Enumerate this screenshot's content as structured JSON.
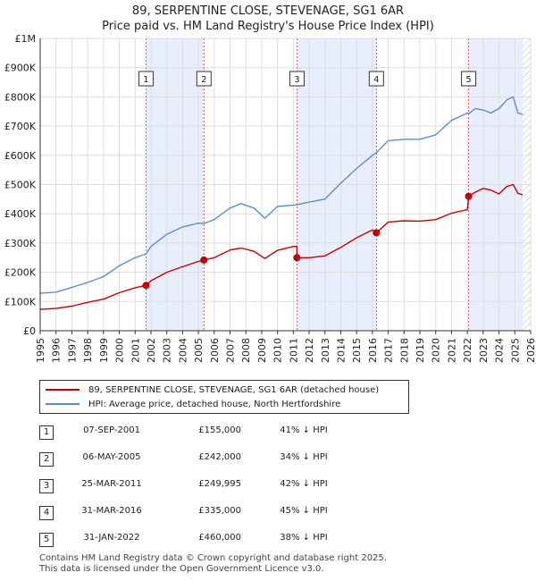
{
  "title": "89, SERPENTINE CLOSE, STEVENAGE, SG1 6AR",
  "subtitle": "Price paid vs. HM Land Registry's House Price Index (HPI)",
  "legend": {
    "property": "89, SERPENTINE CLOSE, STEVENAGE, SG1 6AR (detached house)",
    "hpi": "HPI: Average price, detached house, North Hertfordshire"
  },
  "colors": {
    "property": "#cc0000",
    "hpi": "#5b8fd1",
    "shade": "#e8eefb",
    "grid": "#dddddd"
  },
  "sales": [
    {
      "n": "1",
      "date": "07-SEP-2001",
      "price": "£155,000",
      "hpi": "41% ↓ HPI"
    },
    {
      "n": "2",
      "date": "06-MAY-2005",
      "price": "£242,000",
      "hpi": "34% ↓ HPI"
    },
    {
      "n": "3",
      "date": "25-MAR-2011",
      "price": "£249,995",
      "hpi": "42% ↓ HPI"
    },
    {
      "n": "4",
      "date": "31-MAR-2016",
      "price": "£335,000",
      "hpi": "45% ↓ HPI"
    },
    {
      "n": "5",
      "date": "31-JAN-2022",
      "price": "£460,000",
      "hpi": "38% ↓ HPI"
    }
  ],
  "footer": {
    "line1": "Contains HM Land Registry data © Crown copyright and database right 2025.",
    "line2": "This data is licensed under the Open Government Licence v3.0."
  },
  "chart_data": {
    "type": "line",
    "xlim": [
      1995,
      2026
    ],
    "ylim": [
      0,
      1000000
    ],
    "yticks": [
      {
        "v": 0,
        "label": "£0"
      },
      {
        "v": 100000,
        "label": "£100K"
      },
      {
        "v": 200000,
        "label": "£200K"
      },
      {
        "v": 300000,
        "label": "£300K"
      },
      {
        "v": 400000,
        "label": "£400K"
      },
      {
        "v": 500000,
        "label": "£500K"
      },
      {
        "v": 600000,
        "label": "£600K"
      },
      {
        "v": 700000,
        "label": "£700K"
      },
      {
        "v": 800000,
        "label": "£800K"
      },
      {
        "v": 900000,
        "label": "£900K"
      },
      {
        "v": 1000000,
        "label": "£1M"
      }
    ],
    "xticks": [
      "1995",
      "1996",
      "1997",
      "1998",
      "1999",
      "2000",
      "2001",
      "2002",
      "2003",
      "2004",
      "2005",
      "2006",
      "2007",
      "2008",
      "2009",
      "2010",
      "2011",
      "2012",
      "2013",
      "2014",
      "2015",
      "2016",
      "2017",
      "2018",
      "2019",
      "2020",
      "2021",
      "2022",
      "2023",
      "2024",
      "2025",
      "2026"
    ],
    "shaded_periods": [
      [
        2001.69,
        2005.35
      ],
      [
        2011.23,
        2016.25
      ],
      [
        2022.08,
        2025.5
      ]
    ],
    "hatched_from": 2025.5,
    "sale_markers": [
      {
        "label": "1",
        "x": 2001.69,
        "y": 155000
      },
      {
        "label": "2",
        "x": 2005.35,
        "y": 242000
      },
      {
        "label": "3",
        "x": 2011.23,
        "y": 249995
      },
      {
        "label": "4",
        "x": 2016.25,
        "y": 335000
      },
      {
        "label": "5",
        "x": 2022.08,
        "y": 460000
      }
    ],
    "series": [
      {
        "name": "HPI: Average price, detached house, North Hertfordshire",
        "x": [
          1995.0,
          1996.0,
          1997.0,
          1998.0,
          1999.0,
          2000.0,
          2001.0,
          2001.69,
          2002.0,
          2003.0,
          2004.0,
          2005.0,
          2005.35,
          2006.0,
          2007.0,
          2007.7,
          2008.5,
          2009.2,
          2010.0,
          2011.0,
          2011.23,
          2012.0,
          2013.0,
          2014.0,
          2015.0,
          2016.0,
          2016.25,
          2017.0,
          2018.0,
          2019.0,
          2020.0,
          2021.0,
          2022.0,
          2022.08,
          2022.5,
          2023.0,
          2023.5,
          2024.0,
          2024.5,
          2024.9,
          2025.2,
          2025.5
        ],
        "values": [
          128000,
          132000,
          148000,
          165000,
          185000,
          222000,
          250000,
          263000,
          288000,
          330000,
          355000,
          368000,
          367000,
          380000,
          420000,
          435000,
          420000,
          385000,
          425000,
          430000,
          431000,
          440000,
          450000,
          505000,
          555000,
          600000,
          609000,
          650000,
          655000,
          655000,
          670000,
          720000,
          745000,
          742000,
          760000,
          755000,
          745000,
          760000,
          790000,
          800000,
          745000,
          740000
        ]
      },
      {
        "name": "89, SERPENTINE CLOSE, STEVENAGE, SG1 6AR (detached house)",
        "x": [
          1995.0,
          1996.0,
          1997.0,
          1998.0,
          1999.0,
          2000.0,
          2001.0,
          2001.69,
          2002.0,
          2003.0,
          2004.0,
          2005.0,
          2005.35,
          2006.0,
          2007.0,
          2007.7,
          2008.5,
          2009.2,
          2010.0,
          2011.0,
          2011.22,
          2011.23,
          2012.0,
          2013.0,
          2014.0,
          2015.0,
          2016.0,
          2016.25,
          2017.0,
          2018.0,
          2019.0,
          2020.0,
          2021.0,
          2022.0,
          2022.08,
          2022.5,
          2023.0,
          2023.5,
          2024.0,
          2024.5,
          2024.9,
          2025.2,
          2025.5
        ],
        "values": [
          73000,
          76000,
          84000,
          97000,
          108000,
          130000,
          147000,
          155000,
          171000,
          200000,
          219000,
          237000,
          242000,
          250000,
          276000,
          283000,
          272000,
          247000,
          275000,
          288000,
          289000,
          249995,
          250000,
          256000,
          285000,
          318000,
          345000,
          335000,
          372000,
          376000,
          375000,
          380000,
          402000,
          414000,
          460000,
          474000,
          487000,
          481000,
          468000,
          494000,
          500000,
          470000,
          465000
        ]
      }
    ]
  }
}
